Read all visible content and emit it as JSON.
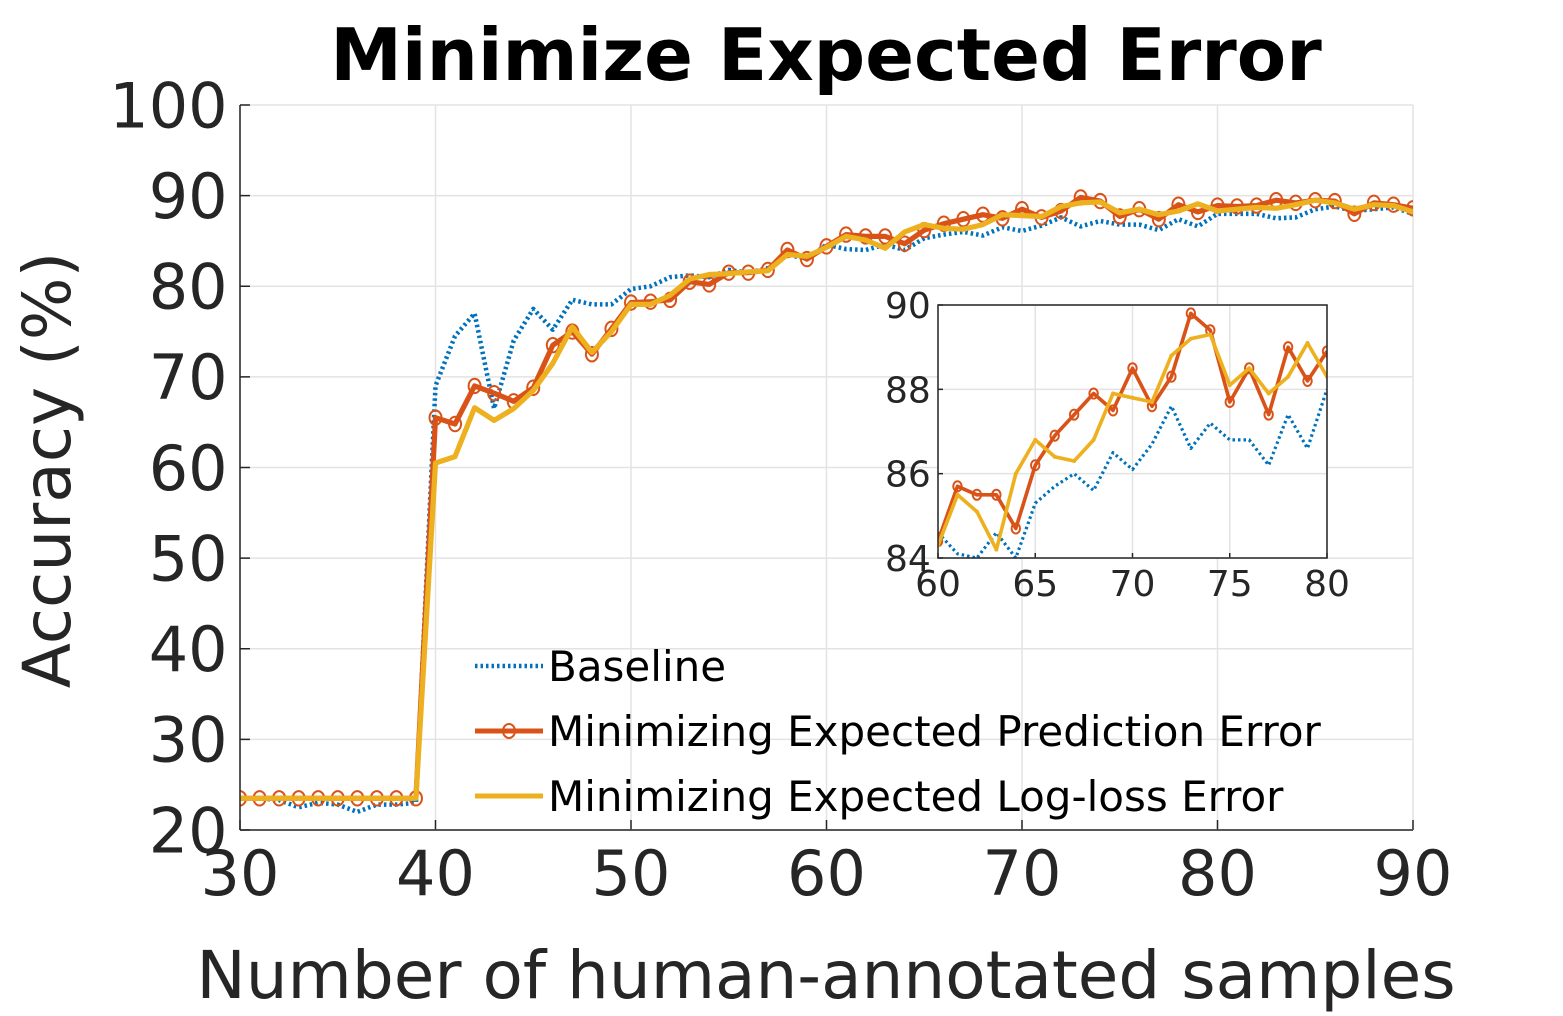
{
  "chart_data": [
    {
      "type": "line",
      "title": "Minimize Expected Error",
      "xlabel": "Number of human-annotated samples",
      "ylabel": "Accuracy (%)",
      "x": [
        30,
        31,
        32,
        33,
        34,
        35,
        36,
        37,
        38,
        39,
        40,
        41,
        42,
        43,
        44,
        45,
        46,
        47,
        48,
        49,
        50,
        51,
        52,
        53,
        54,
        55,
        56,
        57,
        58,
        59,
        60,
        61,
        62,
        63,
        64,
        65,
        66,
        67,
        68,
        69,
        70,
        71,
        72,
        73,
        74,
        75,
        76,
        77,
        78,
        79,
        80,
        81,
        82,
        83,
        84,
        85,
        86,
        87,
        88,
        89,
        90
      ],
      "series": [
        {
          "name": "Baseline",
          "color": "#0072bd",
          "dash": "dotted",
          "marker": "none",
          "values": [
            23.5,
            23.5,
            23.3,
            22.5,
            23,
            22.8,
            22,
            22.8,
            22.8,
            23,
            69,
            74.5,
            77,
            66.5,
            74,
            77.5,
            75.2,
            78.5,
            78,
            78,
            79.7,
            80,
            81,
            81.2,
            81,
            81.8,
            81.5,
            82,
            83.5,
            83,
            84.6,
            84.1,
            84,
            84.6,
            84,
            85.3,
            85.7,
            86,
            85.6,
            86.5,
            86.1,
            86.7,
            87.6,
            86.6,
            87.2,
            86.8,
            86.8,
            86.2,
            87.4,
            86.6,
            88,
            88,
            88,
            87.5,
            87.6,
            88.5,
            88.8,
            88.3,
            88.5,
            88.7,
            88
          ]
        },
        {
          "name": "Minimizing Expected Prediction Error",
          "color": "#d95319",
          "dash": "solid",
          "marker": "circle",
          "values": [
            23.5,
            23.5,
            23.5,
            23.5,
            23.5,
            23.5,
            23.5,
            23.5,
            23.5,
            23.5,
            65.5,
            64.8,
            69,
            68.2,
            67.3,
            68.8,
            73.5,
            75,
            72.5,
            75.3,
            78.2,
            78.3,
            78.5,
            80.5,
            80.2,
            81.5,
            81.5,
            81.8,
            84,
            83,
            84.4,
            85.7,
            85.5,
            85.5,
            84.7,
            86.2,
            86.9,
            87.4,
            87.9,
            87.5,
            88.5,
            87.6,
            88.3,
            89.8,
            89.4,
            87.7,
            88.5,
            87.4,
            89,
            88.2,
            88.9,
            88.8,
            88.9,
            89.5,
            89.2,
            89.5,
            89.4,
            88,
            89.2,
            89,
            88.6
          ]
        },
        {
          "name": "Minimizing Expected Log-loss Error",
          "color": "#edb120",
          "dash": "solid",
          "marker": "point",
          "values": [
            23.5,
            23.5,
            23.5,
            23.5,
            23.5,
            23.5,
            23.5,
            23.5,
            23.5,
            23.5,
            60.5,
            61.2,
            66.6,
            65.2,
            66.5,
            68.5,
            71.5,
            75.5,
            72.7,
            75,
            78,
            78,
            79,
            80.8,
            81.3,
            81.4,
            81.6,
            81.7,
            83.5,
            83.3,
            84.3,
            85.5,
            85.1,
            84.2,
            86,
            86.8,
            86.4,
            86.3,
            86.8,
            87.9,
            87.8,
            87.7,
            88.8,
            89.2,
            89.3,
            88.1,
            88.5,
            87.9,
            88.3,
            89.1,
            88.3,
            88.5,
            88.7,
            88.6,
            89,
            89.5,
            89.2,
            88.5,
            89,
            88.9,
            88.2
          ]
        }
      ],
      "xlim": [
        30,
        90
      ],
      "ylim": [
        20,
        100
      ],
      "xticks": [
        30,
        40,
        50,
        60,
        70,
        80,
        90
      ],
      "yticks": [
        20,
        30,
        40,
        50,
        60,
        70,
        80,
        90,
        100
      ],
      "grid": true,
      "legend": "lower center"
    },
    {
      "type": "line",
      "x": [
        60,
        61,
        62,
        63,
        64,
        65,
        66,
        67,
        68,
        69,
        70,
        71,
        72,
        73,
        74,
        75,
        76,
        77,
        78,
        79,
        80
      ],
      "series": [
        {
          "color": "#0072bd",
          "dash": "dotted",
          "marker": "none",
          "values": [
            84.6,
            84.1,
            84,
            84.6,
            84,
            85.3,
            85.7,
            86,
            85.6,
            86.5,
            86.1,
            86.7,
            87.6,
            86.6,
            87.2,
            86.8,
            86.8,
            86.2,
            87.4,
            86.6,
            88
          ]
        },
        {
          "color": "#d95319",
          "dash": "solid",
          "marker": "circle",
          "values": [
            84.4,
            85.7,
            85.5,
            85.5,
            84.7,
            86.2,
            86.9,
            87.4,
            87.9,
            87.5,
            88.5,
            87.6,
            88.3,
            89.8,
            89.4,
            87.7,
            88.5,
            87.4,
            89,
            88.2,
            88.9
          ]
        },
        {
          "color": "#edb120",
          "dash": "solid",
          "marker": "point",
          "values": [
            84.3,
            85.5,
            85.1,
            84.2,
            86,
            86.8,
            86.4,
            86.3,
            86.8,
            87.9,
            87.8,
            87.7,
            88.8,
            89.2,
            89.3,
            88.1,
            88.5,
            87.9,
            88.3,
            89.1,
            88.3
          ]
        }
      ],
      "xlim": [
        60,
        80
      ],
      "ylim": [
        84,
        90
      ],
      "xticks": [
        60,
        65,
        70,
        75,
        80
      ],
      "yticks": [
        84,
        86,
        88,
        90
      ],
      "grid": true
    }
  ]
}
